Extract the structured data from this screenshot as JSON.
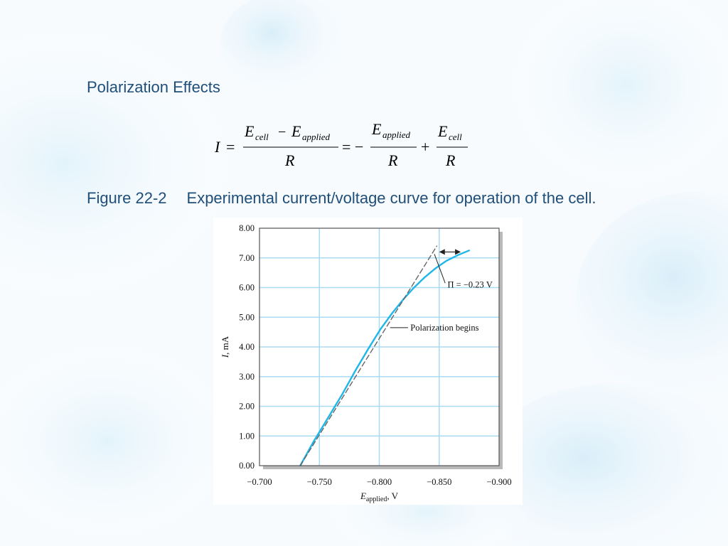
{
  "slide": {
    "title": "Polarization Effects",
    "caption_number": "Figure 22-2",
    "caption_text": "Experimental current/voltage curve for operation of the cell."
  },
  "formula": {
    "lhs": "I",
    "eq1": "=",
    "eq2": "= −",
    "plus": "+",
    "num1_a": "E",
    "num1_a_sub": "cell",
    "num1_minus": "−",
    "num1_b": "E",
    "num1_b_sub": "applied",
    "den1": "R",
    "num2": "E",
    "num2_sub": "applied",
    "den2": "R",
    "num3": "E",
    "num3_sub": "cell",
    "den3": "R"
  },
  "chart_data": {
    "type": "line",
    "xlabel_main": "E",
    "xlabel_sub": "applied",
    "xlabel_unit": ", V",
    "ylabel_main": "I",
    "ylabel_unit": ", mA",
    "xlim": [
      -0.7,
      -0.9
    ],
    "ylim": [
      0,
      8
    ],
    "x_ticks": [
      -0.7,
      -0.75,
      -0.8,
      -0.85,
      -0.9
    ],
    "x_tick_labels": [
      "−0.700",
      "−0.750",
      "−0.800",
      "−0.850",
      "−0.900"
    ],
    "y_ticks": [
      0,
      1,
      2,
      3,
      4,
      5,
      6,
      7,
      8
    ],
    "y_tick_labels": [
      "0.00",
      "1.00",
      "2.00",
      "3.00",
      "4.00",
      "5.00",
      "6.00",
      "7.00",
      "8.00"
    ],
    "grid": true,
    "series": [
      {
        "style": "solid",
        "color": "#1fb6e8",
        "x": [
          -0.734,
          -0.745,
          -0.757,
          -0.769,
          -0.78,
          -0.791,
          -0.801,
          -0.811,
          -0.82,
          -0.829,
          -0.838,
          -0.847,
          -0.856,
          -0.866,
          -0.875
        ],
        "y": [
          0.0,
          0.8,
          1.6,
          2.4,
          3.2,
          3.95,
          4.6,
          5.15,
          5.6,
          6.0,
          6.35,
          6.65,
          6.9,
          7.1,
          7.25
        ]
      },
      {
        "style": "dashed",
        "color": "#666666",
        "x": [
          -0.734,
          -0.848
        ],
        "y": [
          0.0,
          7.4
        ]
      }
    ],
    "annotations": {
      "polarization": "Polarization begins",
      "pi": "Π = −0.23 V"
    },
    "arrow": {
      "x": [
        -0.85,
        -0.868
      ],
      "y": 7.2
    }
  }
}
